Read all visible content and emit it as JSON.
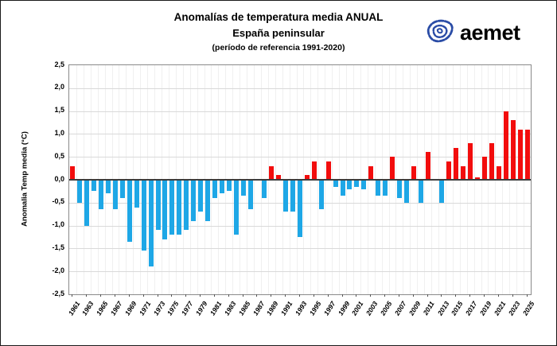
{
  "header": {
    "title": "Anomalías de temperatura media ANUAL",
    "subtitle": "España peninsular",
    "reference": "(período de referencia 1991-2020)",
    "logo_text": "aemet",
    "logo_color": "#20409A"
  },
  "chart_data": {
    "type": "bar",
    "title": "Anomalías de temperatura media ANUAL",
    "subtitle": "España peninsular (período de referencia 1991-2020)",
    "xlabel": "",
    "ylabel": "Anomalia Temp media (°C)",
    "ylim": [
      -2.5,
      2.5
    ],
    "ytick_step": 0.5,
    "y_tick_labels": [
      "2,5",
      "2,0",
      "1,5",
      "1,0",
      "0,5",
      "0,0",
      "-0,5",
      "-1,0",
      "-1,5",
      "-2,0",
      "-2,5"
    ],
    "grid": true,
    "legend": "none",
    "years": [
      1961,
      1962,
      1963,
      1964,
      1965,
      1966,
      1967,
      1968,
      1969,
      1970,
      1971,
      1972,
      1973,
      1974,
      1975,
      1976,
      1977,
      1978,
      1979,
      1980,
      1981,
      1982,
      1983,
      1984,
      1985,
      1986,
      1987,
      1988,
      1989,
      1990,
      1991,
      1992,
      1993,
      1994,
      1995,
      1996,
      1997,
      1998,
      1999,
      2000,
      2001,
      2002,
      2003,
      2004,
      2005,
      2006,
      2007,
      2008,
      2009,
      2010,
      2011,
      2012,
      2013,
      2014,
      2015,
      2016,
      2017,
      2018,
      2019,
      2020,
      2021,
      2022,
      2023,
      2024,
      2025
    ],
    "values": [
      0.3,
      -0.5,
      -1.0,
      -0.25,
      -0.65,
      -0.3,
      -0.65,
      -0.4,
      -1.35,
      -0.6,
      -1.55,
      -1.9,
      -1.1,
      -1.3,
      -1.2,
      -1.2,
      -1.1,
      -0.9,
      -0.7,
      -0.9,
      -0.4,
      -0.3,
      -0.25,
      -1.2,
      -0.35,
      -0.65,
      0.0,
      -0.4,
      0.3,
      0.1,
      -0.7,
      -0.7,
      -1.25,
      0.1,
      0.4,
      -0.65,
      0.4,
      -0.15,
      -0.35,
      -0.2,
      -0.15,
      -0.2,
      0.3,
      -0.35,
      -0.35,
      0.5,
      -0.4,
      -0.5,
      0.3,
      -0.5,
      0.6,
      0.0,
      -0.5,
      0.4,
      0.7,
      0.3,
      0.8,
      0.05,
      0.5,
      0.8,
      0.3,
      1.5,
      1.3,
      1.1,
      1.1
    ],
    "x_tick_labels": [
      "1961",
      "1963",
      "1965",
      "1967",
      "1969",
      "1971",
      "1973",
      "1975",
      "1977",
      "1979",
      "1981",
      "1983",
      "1985",
      "1987",
      "1989",
      "1991",
      "1993",
      "1995",
      "1997",
      "1999",
      "2001",
      "2003",
      "2005",
      "2007",
      "2009",
      "2011",
      "2013",
      "2015",
      "2017",
      "2019",
      "2021",
      "2023",
      "2025"
    ],
    "colors": {
      "positive": "#f20d0d",
      "negative": "#1ea7e6",
      "grid": "#d9d9d9",
      "minor_vgrid": "#f0f0f0",
      "zero_line": "#3d3d3d",
      "plot_border": "#8a8a8a"
    }
  }
}
